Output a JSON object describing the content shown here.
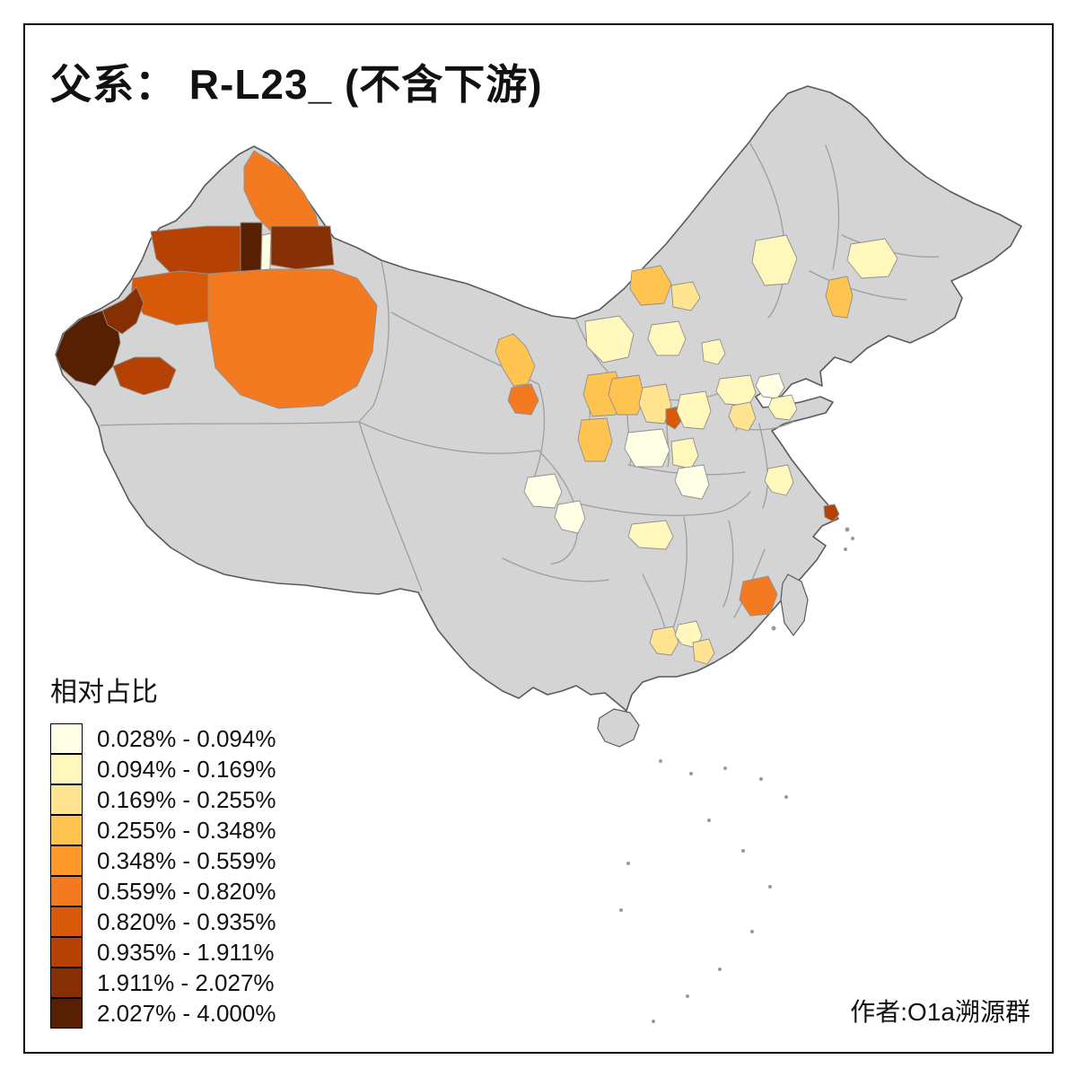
{
  "title": "父系： R-L23_ (不含下游)",
  "attribution": "作者:O1a溯源群",
  "legend": {
    "title": "相对占比",
    "items": [
      {
        "label": "0.028% - 0.094%",
        "color": "#FFFFE5"
      },
      {
        "label": "0.094% - 0.169%",
        "color": "#FFF7BC"
      },
      {
        "label": "0.169% - 0.255%",
        "color": "#FEE391"
      },
      {
        "label": "0.255% - 0.348%",
        "color": "#FEC44F"
      },
      {
        "label": "0.348% - 0.559%",
        "color": "#FE9929"
      },
      {
        "label": "0.559% - 0.820%",
        "color": "#F37A20"
      },
      {
        "label": "0.820% - 0.935%",
        "color": "#D85A09"
      },
      {
        "label": "0.935% - 1.911%",
        "color": "#B54204"
      },
      {
        "label": "1.911% - 2.027%",
        "color": "#872F04"
      },
      {
        "label": "2.027% - 4.000%",
        "color": "#582003"
      }
    ]
  },
  "map": {
    "background_color": "#FFFFFF",
    "land_color": "#D4D4D4",
    "national_border_color": "#5A5A5A",
    "province_border_color": "#9E9E9E",
    "region_border_color": "#8F8F8F",
    "frame_color": "#000000"
  },
  "chart_data": {
    "type": "choropleth",
    "geography": "China, prefecture-level divisions",
    "title": "父系： R-L23_ (不含下游)",
    "legend_title": "相对占比",
    "unit": "%",
    "classes": [
      {
        "range": "0.028% - 0.094%",
        "color": "#FFFFE5"
      },
      {
        "range": "0.094% - 0.169%",
        "color": "#FFF7BC"
      },
      {
        "range": "0.169% - 0.255%",
        "color": "#FEE391"
      },
      {
        "range": "0.255% - 0.348%",
        "color": "#FEC44F"
      },
      {
        "range": "0.348% - 0.559%",
        "color": "#FE9929"
      },
      {
        "range": "0.559% - 0.820%",
        "color": "#F37A20"
      },
      {
        "range": "0.820% - 0.935%",
        "color": "#D85A09"
      },
      {
        "range": "0.935% - 1.911%",
        "color": "#B54204"
      },
      {
        "range": "1.911% - 2.027%",
        "color": "#872F04"
      },
      {
        "range": "2.027% - 4.000%",
        "color": "#582003"
      }
    ],
    "notes": "Uncolored (gray) prefectures have no value shown; highest classes cluster in western Xinjiang, mid-orange across southern/northern Xinjiang and Fujian, pale yellows scattered over北方 and central-eastern prefectures.",
    "attribution": "作者:O1a溯源群"
  }
}
